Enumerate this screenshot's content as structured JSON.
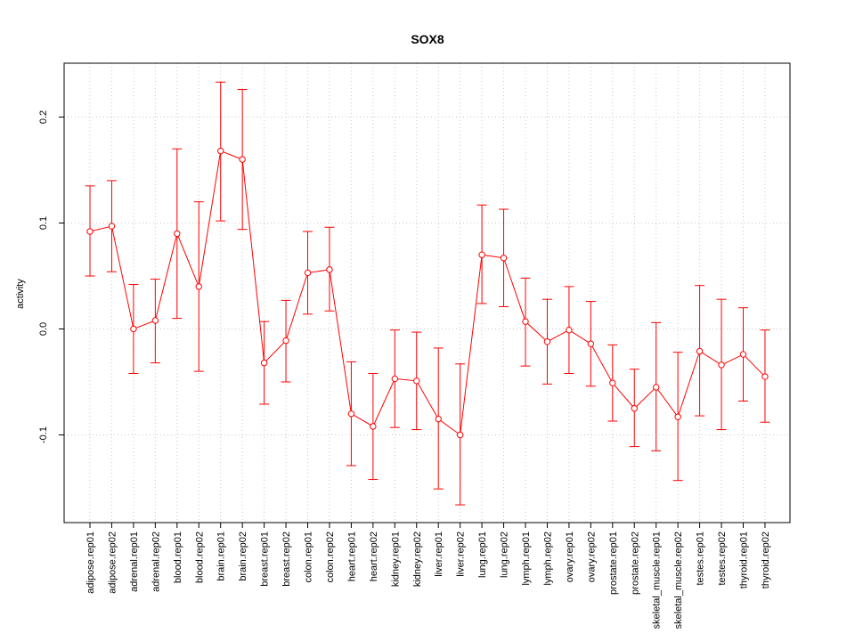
{
  "chart_data": {
    "type": "line",
    "title": "SOX8",
    "xlabel": "",
    "ylabel": "activity",
    "ylim": [
      -0.18,
      0.25
    ],
    "yticks": [
      -0.1,
      0.0,
      0.1,
      0.2
    ],
    "ytick_labels": [
      "-0.1",
      "0.0",
      "0.1",
      "0.2"
    ],
    "grid": true,
    "color": "#ff0000",
    "grid_color": "#c8c8c8",
    "categories": [
      "adipose.rep01",
      "adipose.rep02",
      "adrenal.rep01",
      "adrenal.rep02",
      "blood.rep01",
      "blood.rep02",
      "brain.rep01",
      "brain.rep02",
      "breast.rep01",
      "breast.rep02",
      "colon.rep01",
      "colon.rep02",
      "heart.rep01",
      "heart.rep02",
      "kidney.rep01",
      "kidney.rep02",
      "liver.rep01",
      "liver.rep02",
      "lung.rep01",
      "lung.rep02",
      "lymph.rep01",
      "lymph.rep02",
      "ovary.rep01",
      "ovary.rep02",
      "prostate.rep01",
      "prostate.rep02",
      "skeletal_muscle.rep01",
      "skeletal_muscle.rep02",
      "testes.rep01",
      "testes.rep02",
      "thyroid.rep01",
      "thyroid.rep02"
    ],
    "values": [
      0.092,
      0.097,
      0.0,
      0.008,
      0.09,
      0.04,
      0.168,
      0.16,
      -0.032,
      -0.011,
      0.053,
      0.056,
      -0.08,
      -0.092,
      -0.047,
      -0.049,
      -0.085,
      -0.1,
      0.07,
      0.067,
      0.007,
      -0.012,
      -0.001,
      -0.014,
      -0.051,
      -0.075,
      -0.055,
      -0.083,
      -0.021,
      -0.034,
      -0.024,
      -0.045
    ],
    "upper": [
      0.135,
      0.14,
      0.042,
      0.047,
      0.17,
      0.12,
      0.233,
      0.226,
      0.007,
      0.027,
      0.092,
      0.096,
      -0.031,
      -0.042,
      -0.001,
      -0.003,
      -0.018,
      -0.033,
      0.117,
      0.113,
      0.048,
      0.028,
      0.04,
      0.026,
      -0.015,
      -0.038,
      0.006,
      -0.022,
      0.041,
      0.028,
      0.02,
      -0.001
    ],
    "lower": [
      0.05,
      0.054,
      -0.042,
      -0.032,
      0.01,
      -0.04,
      0.102,
      0.094,
      -0.071,
      -0.05,
      0.014,
      0.017,
      -0.129,
      -0.142,
      -0.093,
      -0.095,
      -0.151,
      -0.166,
      0.024,
      0.021,
      -0.035,
      -0.052,
      -0.042,
      -0.054,
      -0.087,
      -0.111,
      -0.115,
      -0.143,
      -0.082,
      -0.095,
      -0.068,
      -0.088
    ]
  }
}
